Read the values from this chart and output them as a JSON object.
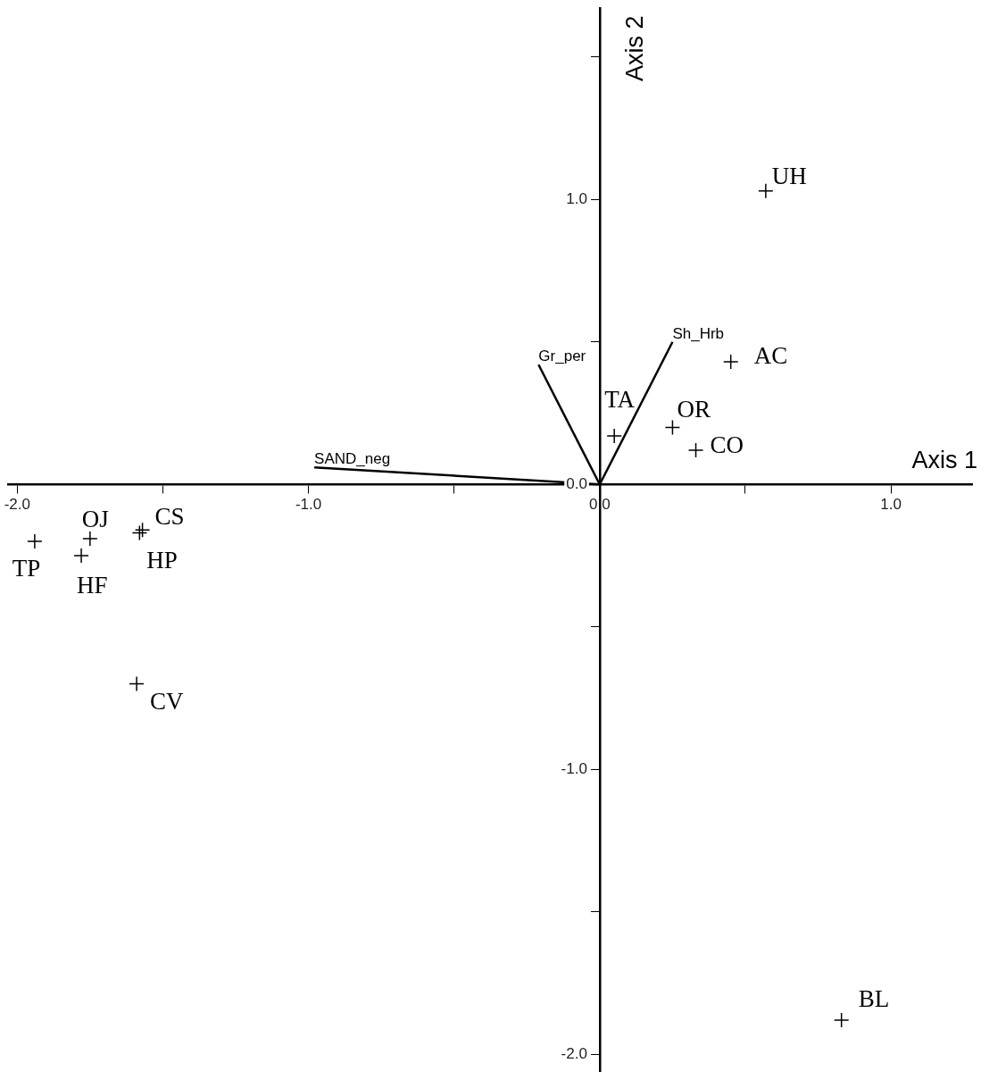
{
  "chart_data": {
    "type": "scatter",
    "xlabel": "Axis 1",
    "ylabel": "Axis 2",
    "xlim": [
      -2.03,
      1.28
    ],
    "ylim": [
      -2.06,
      1.67
    ],
    "xticks": [
      {
        "value": -2,
        "label": "-2.0"
      },
      {
        "value": -1.5,
        "label": null
      },
      {
        "value": -1,
        "label": "-1.0"
      },
      {
        "value": -0.5,
        "label": null
      },
      {
        "value": 0,
        "label": "0.0"
      },
      {
        "value": 0.5,
        "label": null
      },
      {
        "value": 1,
        "label": "1.0"
      }
    ],
    "yticks": [
      {
        "value": -2,
        "label": "-2.0"
      },
      {
        "value": -1.5,
        "label": null
      },
      {
        "value": -1,
        "label": "-1.0"
      },
      {
        "value": -0.5,
        "label": null
      },
      {
        "value": 0,
        "label": "0.0"
      },
      {
        "value": 0.5,
        "label": null
      },
      {
        "value": 1,
        "label": "1.0"
      },
      {
        "value": 1.5,
        "label": null
      }
    ],
    "grid": false,
    "legend": false,
    "marker": "cross",
    "series": [
      {
        "name": "UH",
        "color": "#000000",
        "x": [
          0.57
        ],
        "values": [
          1.03
        ]
      },
      {
        "name": "AC",
        "color": "#000000",
        "x": [
          0.45
        ],
        "values": [
          0.43
        ]
      },
      {
        "name": "TA",
        "color": "#000000",
        "x": [
          0.05
        ],
        "values": [
          0.17
        ]
      },
      {
        "name": "OR",
        "color": "#000000",
        "x": [
          0.25
        ],
        "values": [
          0.2
        ]
      },
      {
        "name": "CO",
        "color": "#000000",
        "x": [
          0.33
        ],
        "values": [
          0.12
        ]
      },
      {
        "name": "CS",
        "color": "#000000",
        "x": [
          -1.57
        ],
        "values": [
          -0.16
        ]
      },
      {
        "name": "HP",
        "color": "#000000",
        "x": [
          -1.58
        ],
        "values": [
          -0.17
        ]
      },
      {
        "name": "OJ",
        "color": "#000000",
        "x": [
          -1.75
        ],
        "values": [
          -0.19
        ]
      },
      {
        "name": "TP",
        "color": "#000000",
        "x": [
          -1.94
        ],
        "values": [
          -0.2
        ]
      },
      {
        "name": "HF",
        "color": "#000000",
        "x": [
          -1.78
        ],
        "values": [
          -0.25
        ]
      },
      {
        "name": "CV",
        "color": "#000000",
        "x": [
          -1.59
        ],
        "values": [
          -0.7
        ]
      },
      {
        "name": "BL",
        "color": "#000000",
        "x": [
          0.83
        ],
        "values": [
          -1.88
        ]
      },
      {
        "name": "SAND_neg",
        "type": "line",
        "marker": "none",
        "color": "#000000",
        "x": [
          0,
          -0.98
        ],
        "values": [
          0,
          0.06
        ]
      },
      {
        "name": "Gr_per",
        "type": "line",
        "marker": "none",
        "color": "#000000",
        "x": [
          0,
          -0.21
        ],
        "values": [
          0,
          0.42
        ]
      },
      {
        "name": "Sh_Hrb",
        "type": "line",
        "marker": "none",
        "color": "#000000",
        "x": [
          0,
          0.25
        ],
        "values": [
          0,
          0.5
        ]
      }
    ]
  }
}
